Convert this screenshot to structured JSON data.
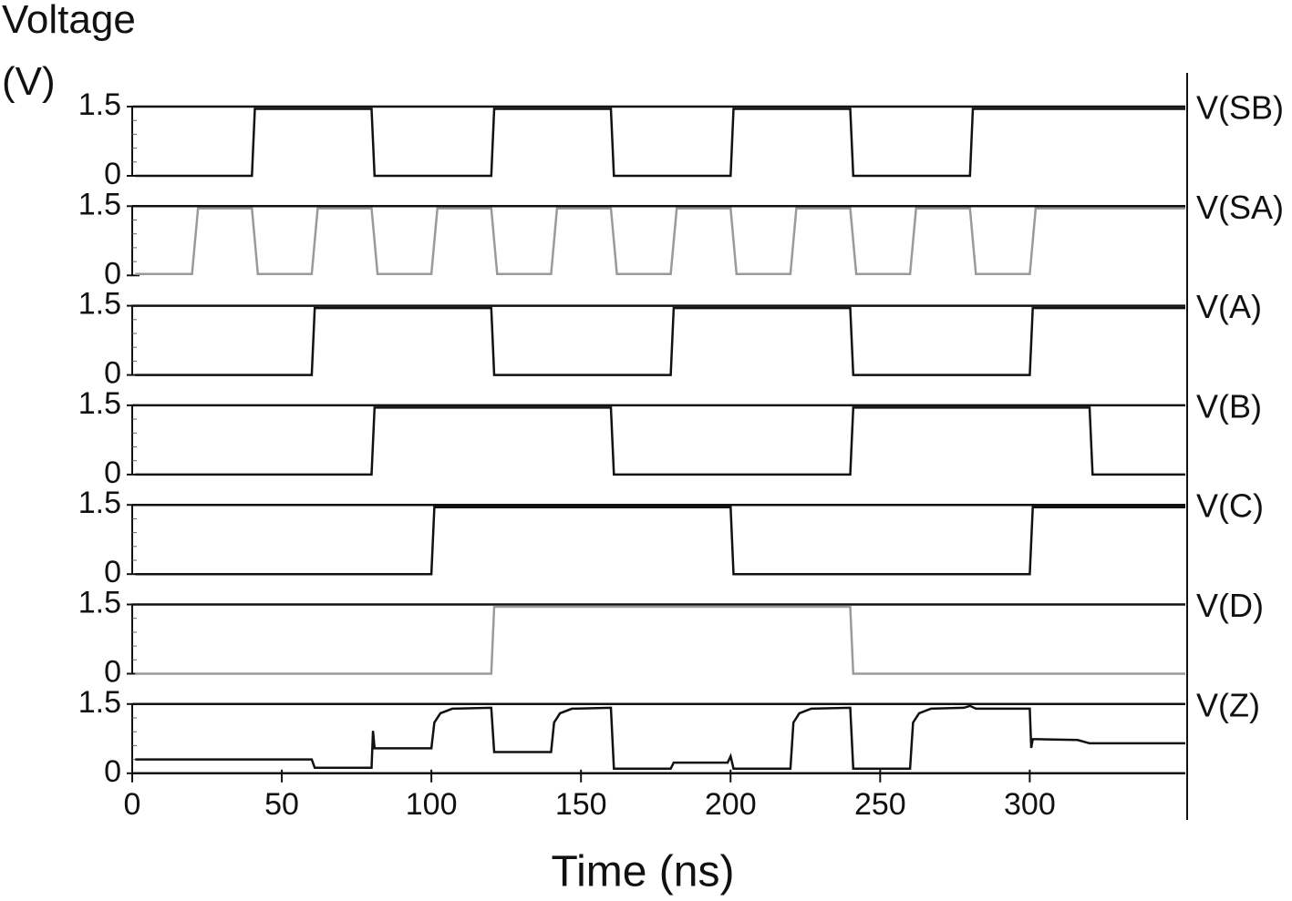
{
  "chart_data": [
    {
      "type": "line",
      "ylabel": "Voltage (V)",
      "xlim": [
        0,
        352
      ],
      "ylim": [
        0,
        1.5
      ],
      "yticks": [
        0,
        1.5
      ],
      "x": [
        1,
        40,
        41,
        80,
        81,
        120,
        121,
        160,
        161,
        200,
        201,
        240,
        241,
        280,
        281,
        352
      ],
      "series": [
        {
          "name": "V(SB)",
          "color": "#111111",
          "values": [
            0,
            0,
            1.45,
            1.45,
            0,
            0,
            1.45,
            1.45,
            0,
            0,
            1.45,
            1.45,
            0,
            0,
            1.45,
            1.45
          ]
        }
      ]
    },
    {
      "type": "line",
      "xlim": [
        0,
        352
      ],
      "ylim": [
        0,
        1.5
      ],
      "yticks": [
        0,
        1.5
      ],
      "x": [
        1,
        20,
        22,
        40,
        42,
        60,
        62,
        80,
        82,
        100,
        102,
        120,
        122,
        140,
        142,
        160,
        162,
        180,
        182,
        200,
        202,
        220,
        222,
        240,
        242,
        260,
        262,
        280,
        282,
        300,
        302,
        352
      ],
      "series": [
        {
          "name": "V(SA)",
          "color": "#9a9a9a",
          "values": [
            0.03,
            0.03,
            1.45,
            1.45,
            0.03,
            0.03,
            1.45,
            1.45,
            0.03,
            0.03,
            1.45,
            1.45,
            0.03,
            0.03,
            1.45,
            1.45,
            0.03,
            0.03,
            1.45,
            1.45,
            0.03,
            0.03,
            1.45,
            1.45,
            0.03,
            0.03,
            1.45,
            1.45,
            0.03,
            0.03,
            1.45,
            1.45
          ]
        }
      ]
    },
    {
      "type": "line",
      "xlim": [
        0,
        352
      ],
      "ylim": [
        0,
        1.5
      ],
      "yticks": [
        0,
        1.5
      ],
      "x": [
        1,
        60,
        61,
        120,
        121,
        180,
        181,
        240,
        241,
        300,
        301,
        352
      ],
      "series": [
        {
          "name": "V(A)",
          "color": "#111111",
          "values": [
            0,
            0,
            1.45,
            1.45,
            0,
            0,
            1.45,
            1.45,
            0,
            0,
            1.45,
            1.45
          ]
        }
      ]
    },
    {
      "type": "line",
      "xlim": [
        0,
        352
      ],
      "ylim": [
        0,
        1.5
      ],
      "yticks": [
        0,
        1.5
      ],
      "x": [
        1,
        80,
        81,
        160,
        161,
        240,
        241,
        320,
        321,
        352
      ],
      "series": [
        {
          "name": "V(B)",
          "color": "#111111",
          "values": [
            0,
            0,
            1.45,
            1.45,
            0,
            0,
            1.45,
            1.45,
            0,
            0
          ]
        }
      ]
    },
    {
      "type": "line",
      "xlim": [
        0,
        352
      ],
      "ylim": [
        0,
        1.5
      ],
      "yticks": [
        0,
        1.5
      ],
      "x": [
        1,
        100,
        101,
        200,
        201,
        300,
        301,
        352
      ],
      "series": [
        {
          "name": "V(C)",
          "color": "#111111",
          "values": [
            0,
            0,
            1.45,
            1.45,
            0,
            0,
            1.45,
            1.45
          ]
        }
      ]
    },
    {
      "type": "line",
      "xlim": [
        0,
        352
      ],
      "ylim": [
        0,
        1.5
      ],
      "yticks": [
        0,
        1.5
      ],
      "x": [
        1,
        120,
        121,
        240,
        241,
        352
      ],
      "series": [
        {
          "name": "V(D)",
          "color": "#9a9a9a",
          "values": [
            0,
            0,
            1.45,
            1.45,
            0,
            0
          ]
        }
      ]
    },
    {
      "type": "line",
      "xlabel": "Time (ns)",
      "xlim": [
        0,
        352
      ],
      "ylim": [
        0,
        1.5
      ],
      "yticks": [
        0,
        1.5
      ],
      "xticks": [
        0,
        50,
        100,
        150,
        200,
        250,
        300
      ],
      "x": [
        1,
        60,
        61,
        80,
        80.5,
        81,
        100,
        101,
        103,
        107,
        120,
        121,
        140,
        141,
        143,
        147,
        160,
        161,
        180,
        181,
        199,
        200,
        201,
        220,
        221,
        223,
        227,
        240,
        241,
        260,
        261,
        263,
        267,
        278,
        280,
        282,
        300,
        300.5,
        301,
        316,
        320,
        352
      ],
      "series": [
        {
          "name": "V(Z)",
          "color": "#111111",
          "values": [
            0.3,
            0.3,
            0.12,
            0.12,
            0.92,
            0.54,
            0.54,
            1.1,
            1.3,
            1.4,
            1.42,
            0.46,
            0.46,
            1.1,
            1.3,
            1.4,
            1.42,
            0.1,
            0.1,
            0.23,
            0.23,
            0.37,
            0.1,
            0.1,
            1.1,
            1.3,
            1.4,
            1.42,
            0.1,
            0.1,
            1.1,
            1.3,
            1.4,
            1.42,
            1.46,
            1.4,
            1.4,
            0.55,
            0.74,
            0.72,
            0.65,
            0.65
          ]
        }
      ]
    }
  ]
}
